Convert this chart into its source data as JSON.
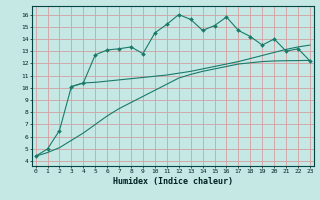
{
  "xlabel": "Humidex (Indice chaleur)",
  "bg_color": "#c5e8e5",
  "grid_color": "#d4a0a0",
  "line_color": "#1a7a6a",
  "x_ticks": [
    0,
    1,
    2,
    3,
    4,
    5,
    6,
    7,
    8,
    9,
    10,
    11,
    12,
    13,
    14,
    15,
    16,
    17,
    18,
    19,
    20,
    21,
    22,
    23
  ],
  "y_ticks": [
    4,
    5,
    6,
    7,
    8,
    9,
    10,
    11,
    12,
    13,
    14,
    15,
    16
  ],
  "xlim": [
    -0.3,
    23.3
  ],
  "ylim": [
    3.6,
    16.7
  ],
  "curve1_x": [
    0,
    1,
    2,
    3,
    4,
    5,
    6,
    7,
    8,
    9,
    10,
    11,
    12,
    13,
    14,
    15,
    16,
    17,
    18,
    19,
    20,
    21,
    22,
    23
  ],
  "curve1_y": [
    4.4,
    5.0,
    6.5,
    10.1,
    10.4,
    12.7,
    13.1,
    13.2,
    13.35,
    12.8,
    14.5,
    15.2,
    16.0,
    15.6,
    14.7,
    15.1,
    15.8,
    14.7,
    14.2,
    13.5,
    14.0,
    13.0,
    13.2,
    12.2
  ],
  "curve2_x": [
    0,
    1,
    2,
    3,
    4,
    5,
    6,
    7,
    8,
    9,
    10,
    11,
    12,
    13,
    14,
    15,
    16,
    17,
    18,
    19,
    20,
    21,
    22,
    23
  ],
  "curve2_y": [
    4.4,
    4.7,
    5.1,
    5.7,
    6.3,
    7.0,
    7.7,
    8.3,
    8.8,
    9.3,
    9.8,
    10.3,
    10.8,
    11.1,
    11.35,
    11.55,
    11.75,
    11.95,
    12.05,
    12.15,
    12.2,
    12.22,
    12.23,
    12.25
  ],
  "curve3_x": [
    3,
    4,
    5,
    6,
    7,
    8,
    9,
    10,
    11,
    12,
    13,
    14,
    15,
    16,
    17,
    18,
    19,
    20,
    21,
    22,
    23
  ],
  "curve3_y": [
    10.1,
    10.4,
    10.45,
    10.55,
    10.65,
    10.75,
    10.85,
    10.95,
    11.05,
    11.2,
    11.35,
    11.55,
    11.75,
    11.95,
    12.15,
    12.4,
    12.65,
    12.9,
    13.15,
    13.35,
    13.5
  ]
}
